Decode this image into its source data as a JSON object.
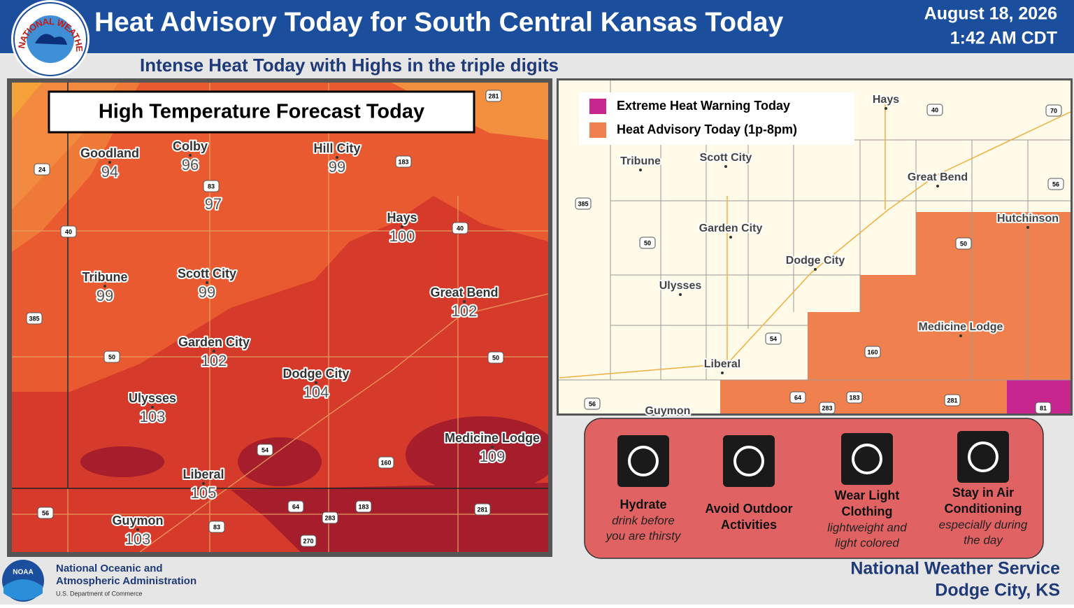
{
  "header": {
    "logo_text": "NATIONAL WEATHER SERVICE",
    "title": "Heat Advisory Today for South Central Kansas Today",
    "date": "August 18, 2026",
    "time": "1:42 AM CDT",
    "subtitle": "Intense Heat Today with Highs in the triple digits"
  },
  "left_map": {
    "title": "High Temperature Forecast Today",
    "cities": [
      {
        "name": "Goodland",
        "temp": 94
      },
      {
        "name": "Colby",
        "temp": 96
      },
      {
        "name": null,
        "temp": 97
      },
      {
        "name": "Hill City",
        "temp": 99
      },
      {
        "name": "Hays",
        "temp": 100
      },
      {
        "name": "Tribune",
        "temp": 99
      },
      {
        "name": "Scott City",
        "temp": 99
      },
      {
        "name": "Great Bend",
        "temp": 102
      },
      {
        "name": "Garden City",
        "temp": 102
      },
      {
        "name": "Dodge City",
        "temp": 104
      },
      {
        "name": "Ulysses",
        "temp": 103
      },
      {
        "name": "Medicine Lodge",
        "temp": 109
      },
      {
        "name": "Liberal",
        "temp": 105
      },
      {
        "name": "Guymon",
        "temp": 103
      }
    ],
    "shields": [
      "281",
      "24",
      "183",
      "83",
      "40",
      "40",
      "385",
      "50",
      "50",
      "54",
      "160",
      "56",
      "64",
      "283",
      "183",
      "281",
      "83",
      "270"
    ]
  },
  "right_map": {
    "legend": [
      {
        "label": "Extreme Heat Warning Today",
        "color": "#c8268f"
      },
      {
        "label": "Heat Advisory Today (1p-8pm)",
        "color": "#f0814f"
      }
    ],
    "cities": [
      "Hays",
      "Tribune",
      "Scott City",
      "Great Bend",
      "Hutchinson",
      "Garden City",
      "Dodge City",
      "Ulysses",
      "Medicine Lodge",
      "Liberal",
      "Guymon"
    ],
    "shields": [
      "40",
      "70",
      "385",
      "56",
      "50",
      "50",
      "54",
      "160",
      "64",
      "283",
      "183",
      "281",
      "56",
      "81"
    ]
  },
  "tips": [
    {
      "title": [
        "Hydrate"
      ],
      "detail": [
        "drink before",
        "you are thirsty"
      ]
    },
    {
      "title": [
        "Avoid Outdoor",
        "Activities"
      ],
      "detail": []
    },
    {
      "title": [
        "Wear Light",
        "Clothing"
      ],
      "detail": [
        "lightweight and",
        "light colored"
      ]
    },
    {
      "title": [
        "Stay in Air",
        "Conditioning"
      ],
      "detail": [
        "especially during",
        "the day"
      ]
    }
  ],
  "footer": {
    "noaa_logo": "NOAA",
    "agency": [
      "National Oceanic and",
      "Atmospheric Administration"
    ],
    "department": "U.S. Department of Commerce",
    "office": [
      "National Weather Service",
      "Dodge City, KS"
    ]
  }
}
